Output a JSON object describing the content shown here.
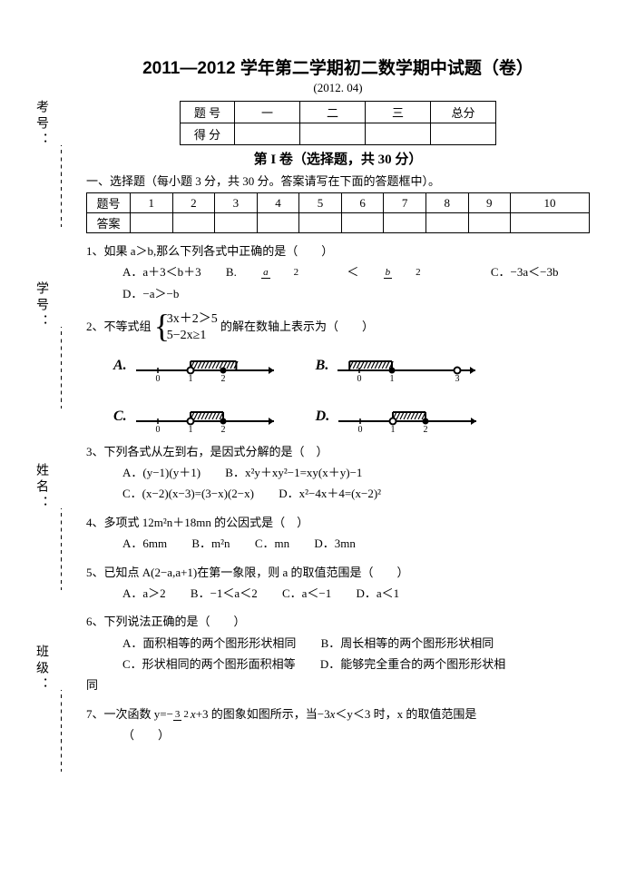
{
  "title": "2011—2012 学年第二学期初二数学期中试题（卷）",
  "subtitle": "(2012. 04)",
  "score_table": {
    "rows": [
      [
        "题 号",
        "一",
        "二",
        "三",
        "总分"
      ],
      [
        "得 分",
        "",
        "",
        "",
        ""
      ]
    ]
  },
  "section1_title": "第 I 卷（选择题，共 30 分）",
  "sec1_instruction": "一、选择题（每小题 3 分，共 30 分。答案请写在下面的答题框中）。",
  "answer_table": {
    "header": "题号",
    "row2_label": "答案",
    "nums": [
      "1",
      "2",
      "3",
      "4",
      "5",
      "6",
      "7",
      "8",
      "9",
      "10"
    ]
  },
  "side_labels": {
    "kaohao": "考号：",
    "xuehao": "学号：",
    "xingming": "姓名：",
    "banji": "班级："
  },
  "q1": {
    "stem": "1、如果 a＞b,那么下列各式中正确的是（　　）",
    "A": "A．a＋3＜b＋3",
    "B_pre": "B.",
    "B_lt": "＜",
    "C": "C．−3a＜−3b",
    "D": "D．−a＞−b"
  },
  "q2": {
    "pre": "2、不等式组",
    "l1": "3x＋2＞5",
    "l2": "5−2x≥1",
    "post": "的解在数轴上表示为（　　）",
    "labels": {
      "A": "A.",
      "B": "B.",
      "C": "C.",
      "D": "D."
    }
  },
  "q3": {
    "stem": "3、下列各式从左到右，是因式分解的是（　）",
    "A": "A．(y−1)(y＋1)",
    "B": "B．x²y＋xy²−1=xy(x＋y)−1",
    "C": "C．(x−2)(x−3)=(3−x)(2−x)",
    "D": "D．x²−4x＋4=(x−2)²"
  },
  "q4": {
    "stem": "4、多项式 12m²n＋18mn 的公因式是（　）",
    "A": "A．6mm",
    "B": "B．m²n",
    "C": "C．mn",
    "D": "D．3mn"
  },
  "q5": {
    "stem": "5、已知点 A(2−a,a+1)在第一象限，则 a 的取值范围是（　　）",
    "A": "A．a＞2",
    "B": "B．−1＜a＜2",
    "C": "C．a＜−1",
    "D": "D．a＜1"
  },
  "q6": {
    "stem": "6、下列说法正确的是（　　）",
    "A": "A．面积相等的两个图形形状相同",
    "B": "B．周长相等的两个图形形状相同",
    "C": "C．形状相同的两个图形面积相等",
    "D": "D．能够完全重合的两个图形形状相",
    "D_cont": "同"
  },
  "q7": {
    "pre": "7、一次函数 y=−",
    "frac_n": "3",
    "frac_d": "2",
    "mid_html": "<i>x</i>+3 的图象如图所示，当−3<i>x</i>＜y＜3 时，x 的取值范围是",
    "cont": "（　　）"
  },
  "nl_style": {
    "stroke": "#000",
    "stroke_width": 2,
    "hatch_height": 10
  },
  "number_lines": {
    "A": {
      "open_at": 1,
      "closed_at": 2,
      "hatch_from": 1,
      "hatch_to": 2.4,
      "ticks": [
        0,
        1,
        2
      ],
      "extend_right": true
    },
    "B": {
      "closed_low": 1,
      "open_high": 3,
      "hatch_from": -0.3,
      "hatch_to": 1,
      "ticks": [
        0,
        1,
        3
      ],
      "extend_left": true
    },
    "C": {
      "open_at": 1,
      "closed_at": 2,
      "hatch_from": 1,
      "hatch_to": 2,
      "ticks": [
        0,
        1,
        2
      ]
    },
    "D": {
      "open_at": 1,
      "closed_at": 2,
      "hatch_from": 1,
      "hatch_to": 2,
      "ticks": [
        0,
        1,
        2
      ]
    }
  }
}
